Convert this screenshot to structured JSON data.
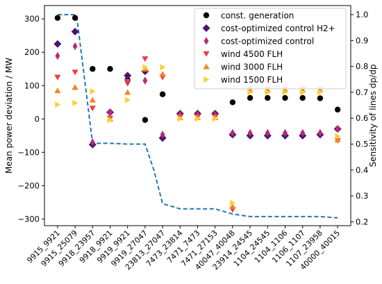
{
  "chart_data": {
    "type": "scatter",
    "title": "",
    "xlabel": "",
    "ylabel": "Mean power deviation / MW",
    "y2label": "Sensitivity of lines dp/dp",
    "ylim": [
      -320,
      340
    ],
    "y2lim": [
      0.185,
      1.035
    ],
    "yticks": [
      -300,
      -200,
      -100,
      0,
      100,
      200,
      300
    ],
    "y2ticks": [
      0.2,
      0.3,
      0.4,
      0.5,
      0.6,
      0.7,
      0.8,
      0.9,
      1.0
    ],
    "y2tick_labels": [
      "0.2",
      "0.3",
      "0.4",
      "0.5",
      "0.6",
      "0.7",
      "0.8",
      "0.9",
      "1.0"
    ],
    "grid": false,
    "legend_position": "top-right",
    "categories": [
      "9915_9921",
      "9915_25079",
      "9918_23957",
      "9918_9921",
      "9919_9921",
      "9919_27047",
      "23813_27047",
      "7473_23814",
      "7471_7473",
      "7471_27153",
      "40047_40048",
      "23914_24545",
      "1104_24545",
      "1104_1106",
      "1106_1107",
      "1107_23958",
      "40000_40015"
    ],
    "series": [
      {
        "name": "const. generation",
        "marker": "circle",
        "color": "#000000",
        "values": [
          303,
          303,
          150,
          150,
          117,
          -3,
          74,
          14,
          14,
          14,
          50,
          63,
          63,
          63,
          63,
          62,
          28
        ]
      },
      {
        "name": "cost-optimized control H2+",
        "marker": "diamond",
        "color": "#4b1376",
        "values": [
          225,
          262,
          -77,
          20,
          130,
          143,
          -57,
          16,
          16,
          16,
          -47,
          -50,
          -50,
          -50,
          -50,
          -47,
          -30
        ]
      },
      {
        "name": "cost-optimized control",
        "marker": "thin_diamond",
        "color": "#b52a7a",
        "values": [
          189,
          218,
          -70,
          20,
          110,
          115,
          -47,
          13,
          13,
          13,
          -42,
          -42,
          -42,
          -42,
          -42,
          -42,
          -30
        ]
      },
      {
        "name": "wind 4500 FLH",
        "marker": "triangle_down",
        "color": "#ef3b45",
        "values": [
          125,
          140,
          32,
          2,
          112,
          180,
          125,
          6,
          6,
          6,
          -272,
          90,
          90,
          90,
          90,
          90,
          -65
        ]
      },
      {
        "name": "wind 3000 FLH",
        "marker": "triangle_up",
        "color": "#f6831e",
        "values": [
          85,
          95,
          57,
          0,
          80,
          150,
          135,
          4,
          4,
          4,
          -262,
          87,
          87,
          87,
          87,
          87,
          -62
        ]
      },
      {
        "name": "wind 1500 FLH",
        "marker": "triangle_right",
        "color": "#fbd032",
        "values": [
          43,
          48,
          83,
          -3,
          57,
          155,
          155,
          1,
          1,
          1,
          -252,
          80,
          80,
          80,
          80,
          80,
          -52
        ]
      }
    ],
    "secondary_series": {
      "name": "",
      "style": "dashed",
      "color": "#1f77b4",
      "axis": "right",
      "x": [
        0,
        1,
        1.1,
        2,
        2.2,
        3,
        4,
        5,
        5.5,
        6,
        7,
        9,
        10,
        11,
        12,
        13,
        14,
        15,
        16
      ],
      "values": [
        1.0,
        1.0,
        0.99,
        0.503,
        0.503,
        0.503,
        0.5,
        0.5,
        0.4,
        0.27,
        0.25,
        0.25,
        0.23,
        0.22,
        0.22,
        0.22,
        0.22,
        0.22,
        0.215
      ]
    }
  }
}
